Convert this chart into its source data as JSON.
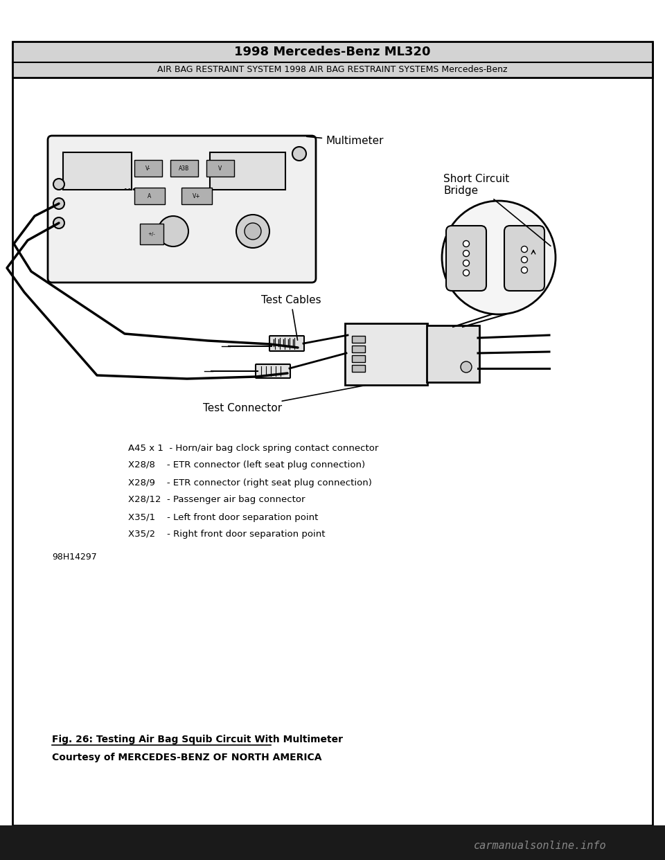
{
  "title_line1": "1998 Mercedes-Benz ML320",
  "title_line2": "AIR BAG RESTRAINT SYSTEM 1998 AIR BAG RESTRAINT SYSTEMS Mercedes-Benz",
  "fig_caption": "Fig. 26: Testing Air Bag Squib Circuit With Multimeter",
  "courtesy": "Courtesy of MERCEDES-BENZ OF NORTH AMERICA",
  "label_multimeter": "Multimeter",
  "label_short_circuit": "Short Circuit\nBridge",
  "label_test_cables": "Test Cables",
  "label_test_connector": "Test Connector",
  "legend_items": [
    "A45 x 1  - Horn/air bag clock spring contact connector",
    "X28/8    - ETR connector (left seat plug connection)",
    "X28/9    - ETR connector (right seat plug connection)",
    "X28/12  - Passenger air bag connector",
    "X35/1    - Left front door separation point",
    "X35/2    - Right front door separation point"
  ],
  "ref_number": "98H14297",
  "bg_color": "#ffffff",
  "header_bg": "#d3d3d3",
  "border_color": "#000000",
  "text_color": "#000000",
  "footer_bg": "#1a1a1a",
  "watermark_text": "carmanualsonline.info",
  "watermark_color": "#888888"
}
